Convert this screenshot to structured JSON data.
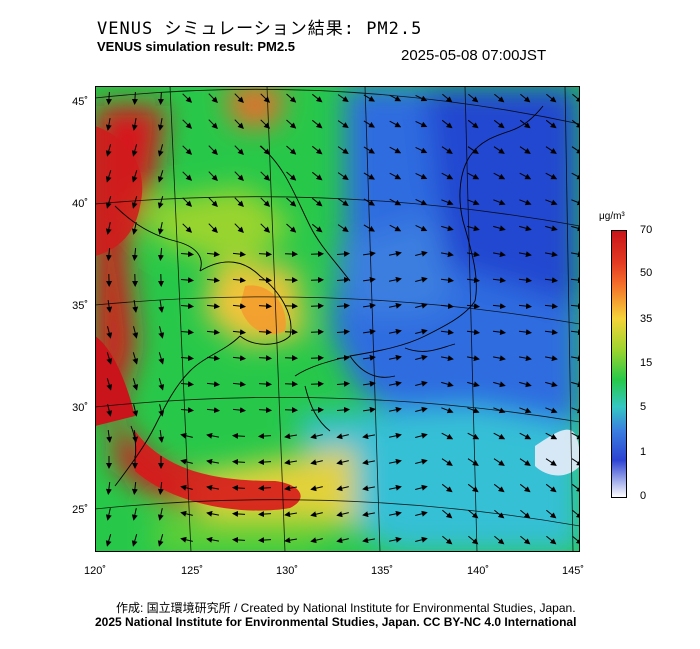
{
  "title_jp": "VENUS シミュレーション結果: PM2.5",
  "title_en": "VENUS simulation result: PM2.5",
  "datetime": "2025-05-08 07:00JST",
  "lat_labels": [
    "45˚",
    "40˚",
    "35˚",
    "30˚",
    "25˚"
  ],
  "lon_labels": [
    "120˚",
    "125˚",
    "130˚",
    "135˚",
    "140˚",
    "145˚"
  ],
  "colorbar": {
    "unit": "μg/m³",
    "labels": [
      "70",
      "50",
      "35",
      "15",
      "5",
      "1",
      "0"
    ],
    "colors": [
      "#d7191c",
      "#f46d2a",
      "#f5d33a",
      "#9ad42f",
      "#27c84a",
      "#35c7c3",
      "#3a7ee0",
      "#2c43d2",
      "#ffffff"
    ]
  },
  "footer": {
    "credit": "作成: 国立環境研究所 / Created by National Institute for Environmental Studies, Japan.",
    "license": "2025 National Institute for Environmental Studies, Japan. CC BY-NC 4.0 International"
  }
}
